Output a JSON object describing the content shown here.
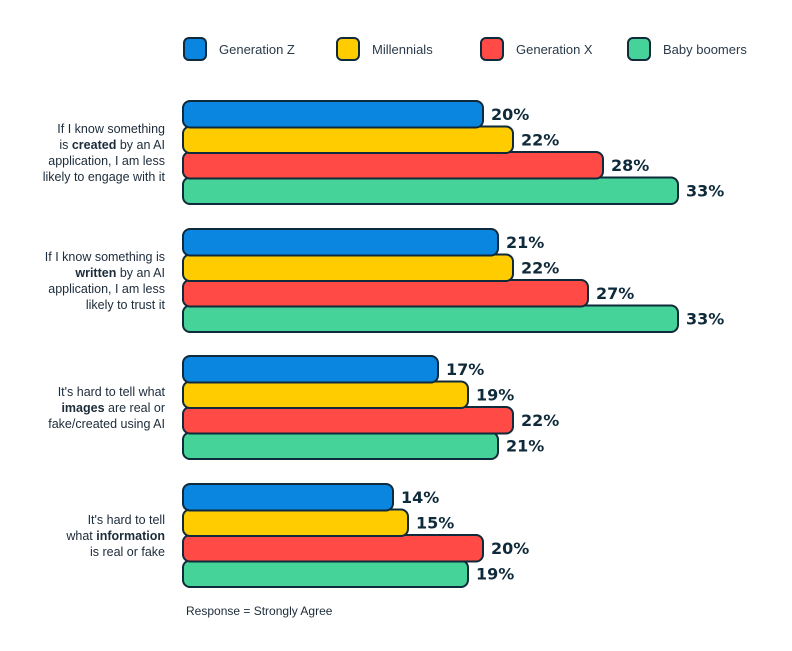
{
  "chart_data": {
    "type": "bar",
    "orientation": "horizontal",
    "legend_position": "top",
    "series": [
      {
        "name": "Generation Z",
        "color": "#0a86e0",
        "values": [
          20,
          21,
          17,
          14
        ]
      },
      {
        "name": "Millennials",
        "color": "#ffcc00",
        "values": [
          22,
          22,
          19,
          15
        ]
      },
      {
        "name": "Generation X",
        "color": "#ff4a45",
        "values": [
          28,
          27,
          22,
          20
        ]
      },
      {
        "name": "Baby boomers",
        "color": "#45d39a",
        "values": [
          33,
          33,
          21,
          19
        ]
      }
    ],
    "categories": [
      {
        "lines": [
          {
            "pre": "If I know something",
            "bold": "",
            "post": ""
          },
          {
            "pre": "is ",
            "bold": "created",
            "post": " by an AI"
          },
          {
            "pre": "application, I am less",
            "bold": "",
            "post": ""
          },
          {
            "pre": "likely to engage with it",
            "bold": "",
            "post": ""
          }
        ]
      },
      {
        "lines": [
          {
            "pre": "If I know something is",
            "bold": "",
            "post": ""
          },
          {
            "pre": "",
            "bold": "written",
            "post": " by an AI"
          },
          {
            "pre": "application, I am less",
            "bold": "",
            "post": ""
          },
          {
            "pre": "likely to trust it",
            "bold": "",
            "post": ""
          }
        ]
      },
      {
        "lines": [
          {
            "pre": "It's hard to tell what",
            "bold": "",
            "post": ""
          },
          {
            "pre": "",
            "bold": "images",
            "post": " are real or"
          },
          {
            "pre": "fake/created using AI",
            "bold": "",
            "post": ""
          }
        ]
      },
      {
        "lines": [
          {
            "pre": "It's hard to tell",
            "bold": "",
            "post": ""
          },
          {
            "pre": "what ",
            "bold": "information",
            "post": ""
          },
          {
            "pre": "is real or fake",
            "bold": "",
            "post": ""
          }
        ]
      }
    ],
    "value_suffix": "%",
    "xlim": [
      0,
      35
    ],
    "grid": false,
    "note": "Response = Strongly Agree"
  }
}
